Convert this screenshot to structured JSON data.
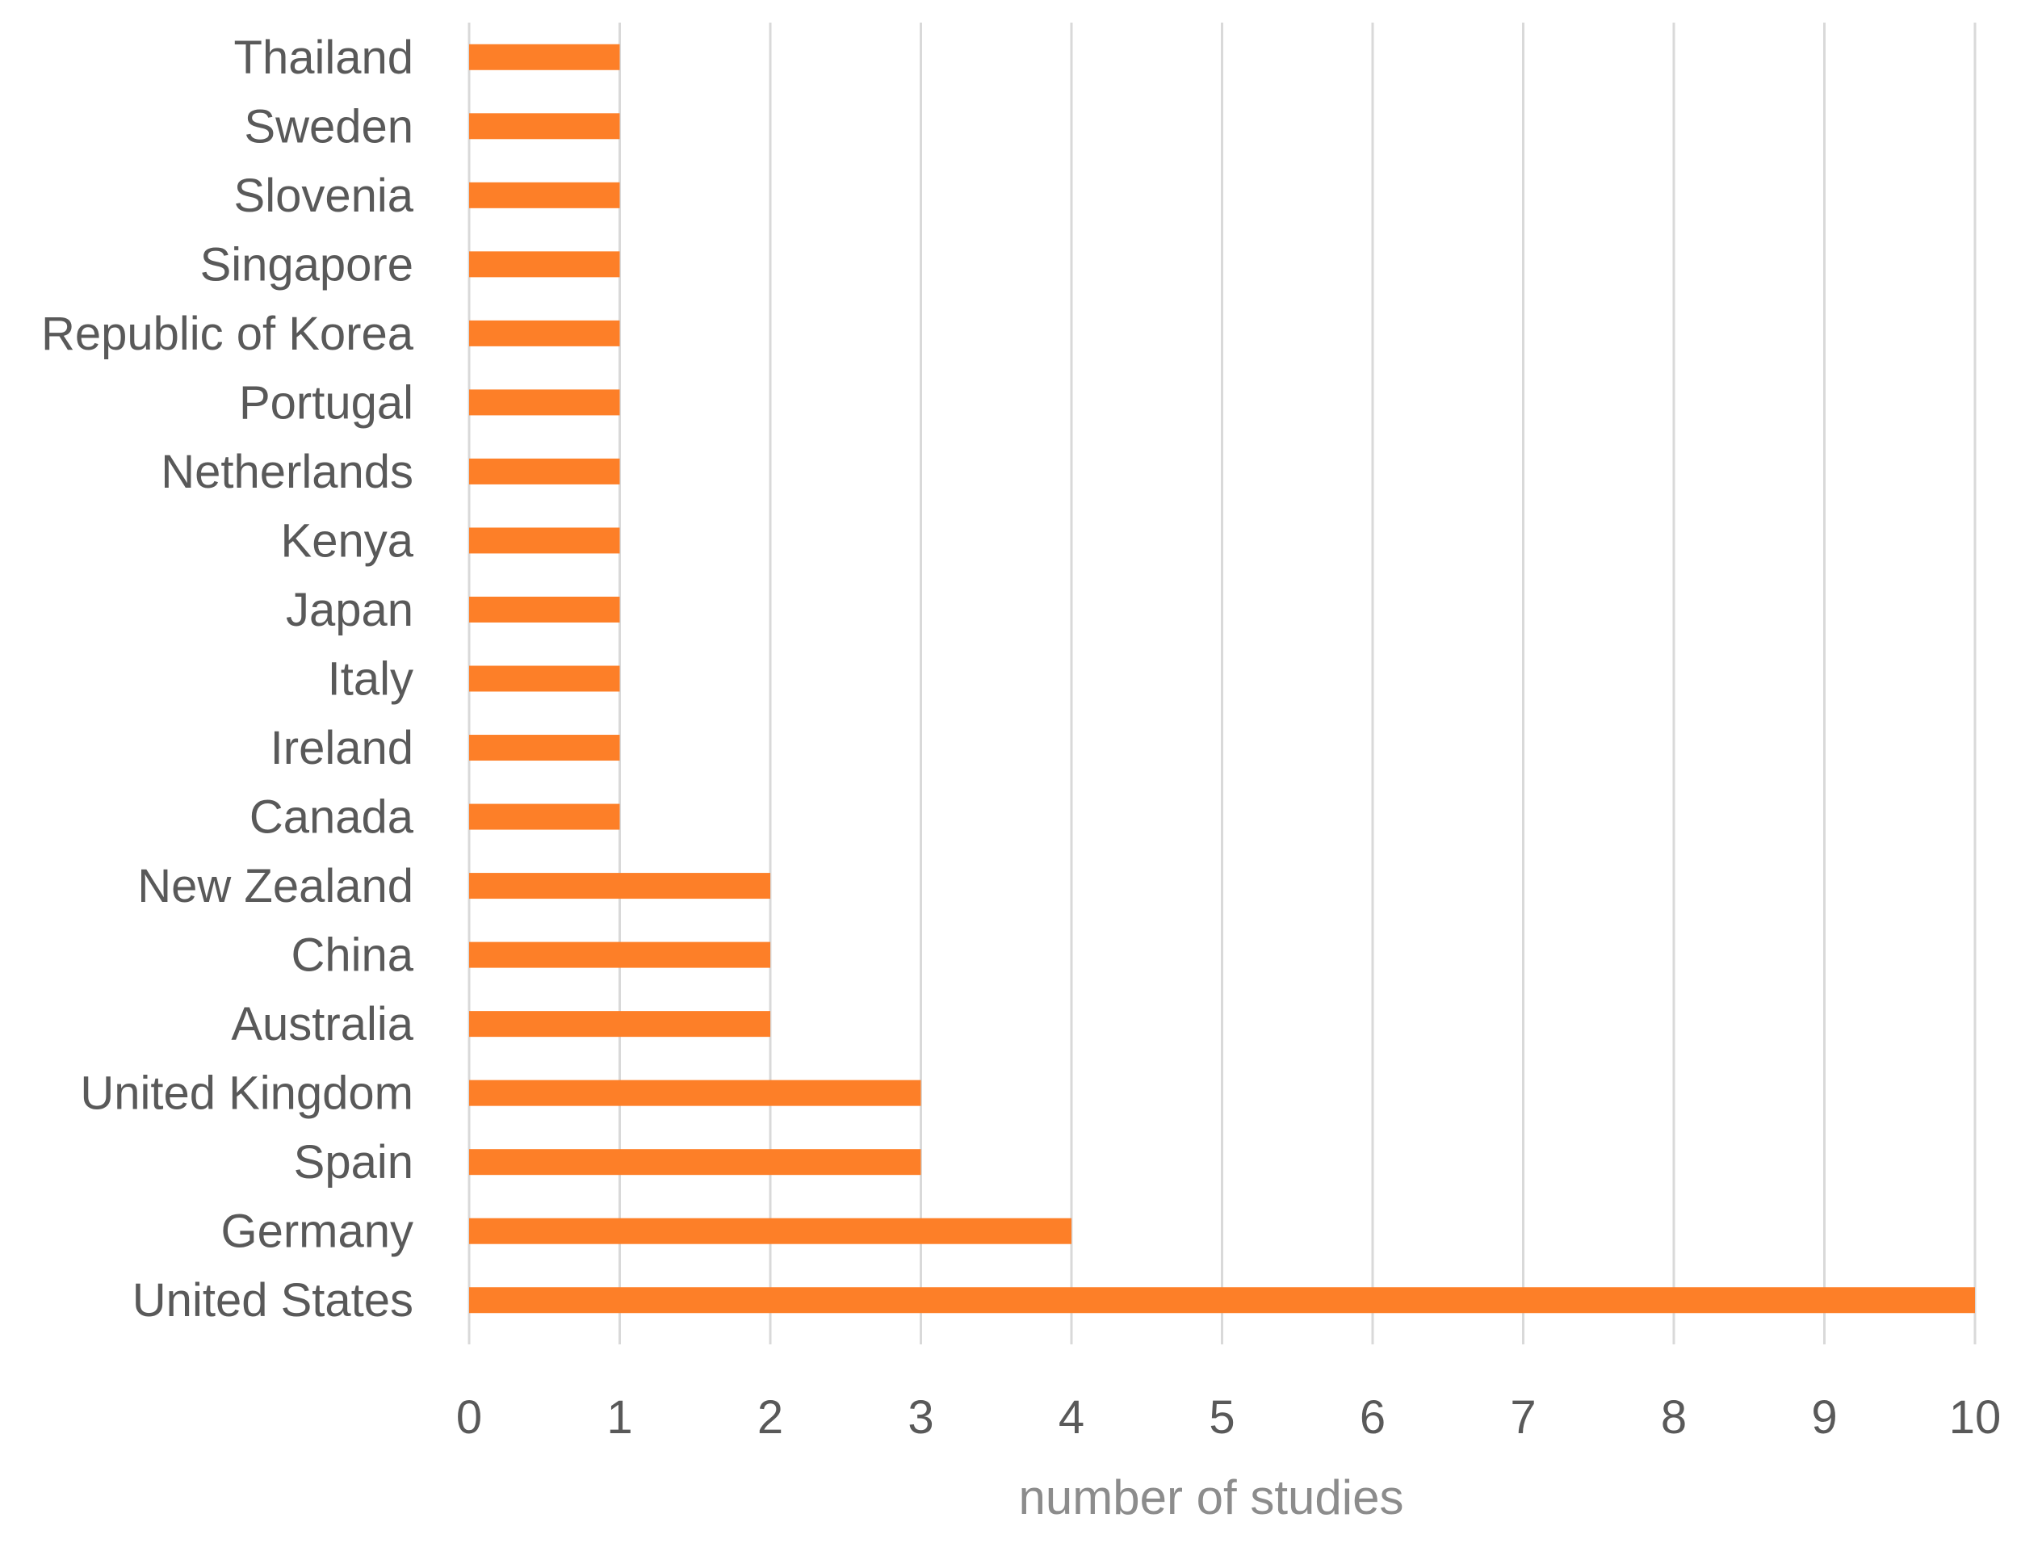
{
  "chart_data": {
    "type": "bar",
    "orientation": "horizontal",
    "categories": [
      "Thailand",
      "Sweden",
      "Slovenia",
      "Singapore",
      "Republic of Korea",
      "Portugal",
      "Netherlands",
      "Kenya",
      "Japan",
      "Italy",
      "Ireland",
      "Canada",
      "New Zealand",
      "China",
      "Australia",
      "United Kingdom",
      "Spain",
      "Germany",
      "United States"
    ],
    "values": [
      1,
      1,
      1,
      1,
      1,
      1,
      1,
      1,
      1,
      1,
      1,
      1,
      2,
      2,
      2,
      3,
      3,
      4,
      10
    ],
    "xlabel": "number of studies",
    "ylabel": "",
    "xlim": [
      0,
      10
    ],
    "xticks": [
      "0",
      "1",
      "2",
      "3",
      "4",
      "5",
      "6",
      "7",
      "8",
      "9",
      "10"
    ],
    "grid": "vertical",
    "bar_color": "#fd7f28",
    "grid_color": "#d9d9d9",
    "text_color": "#595959"
  }
}
